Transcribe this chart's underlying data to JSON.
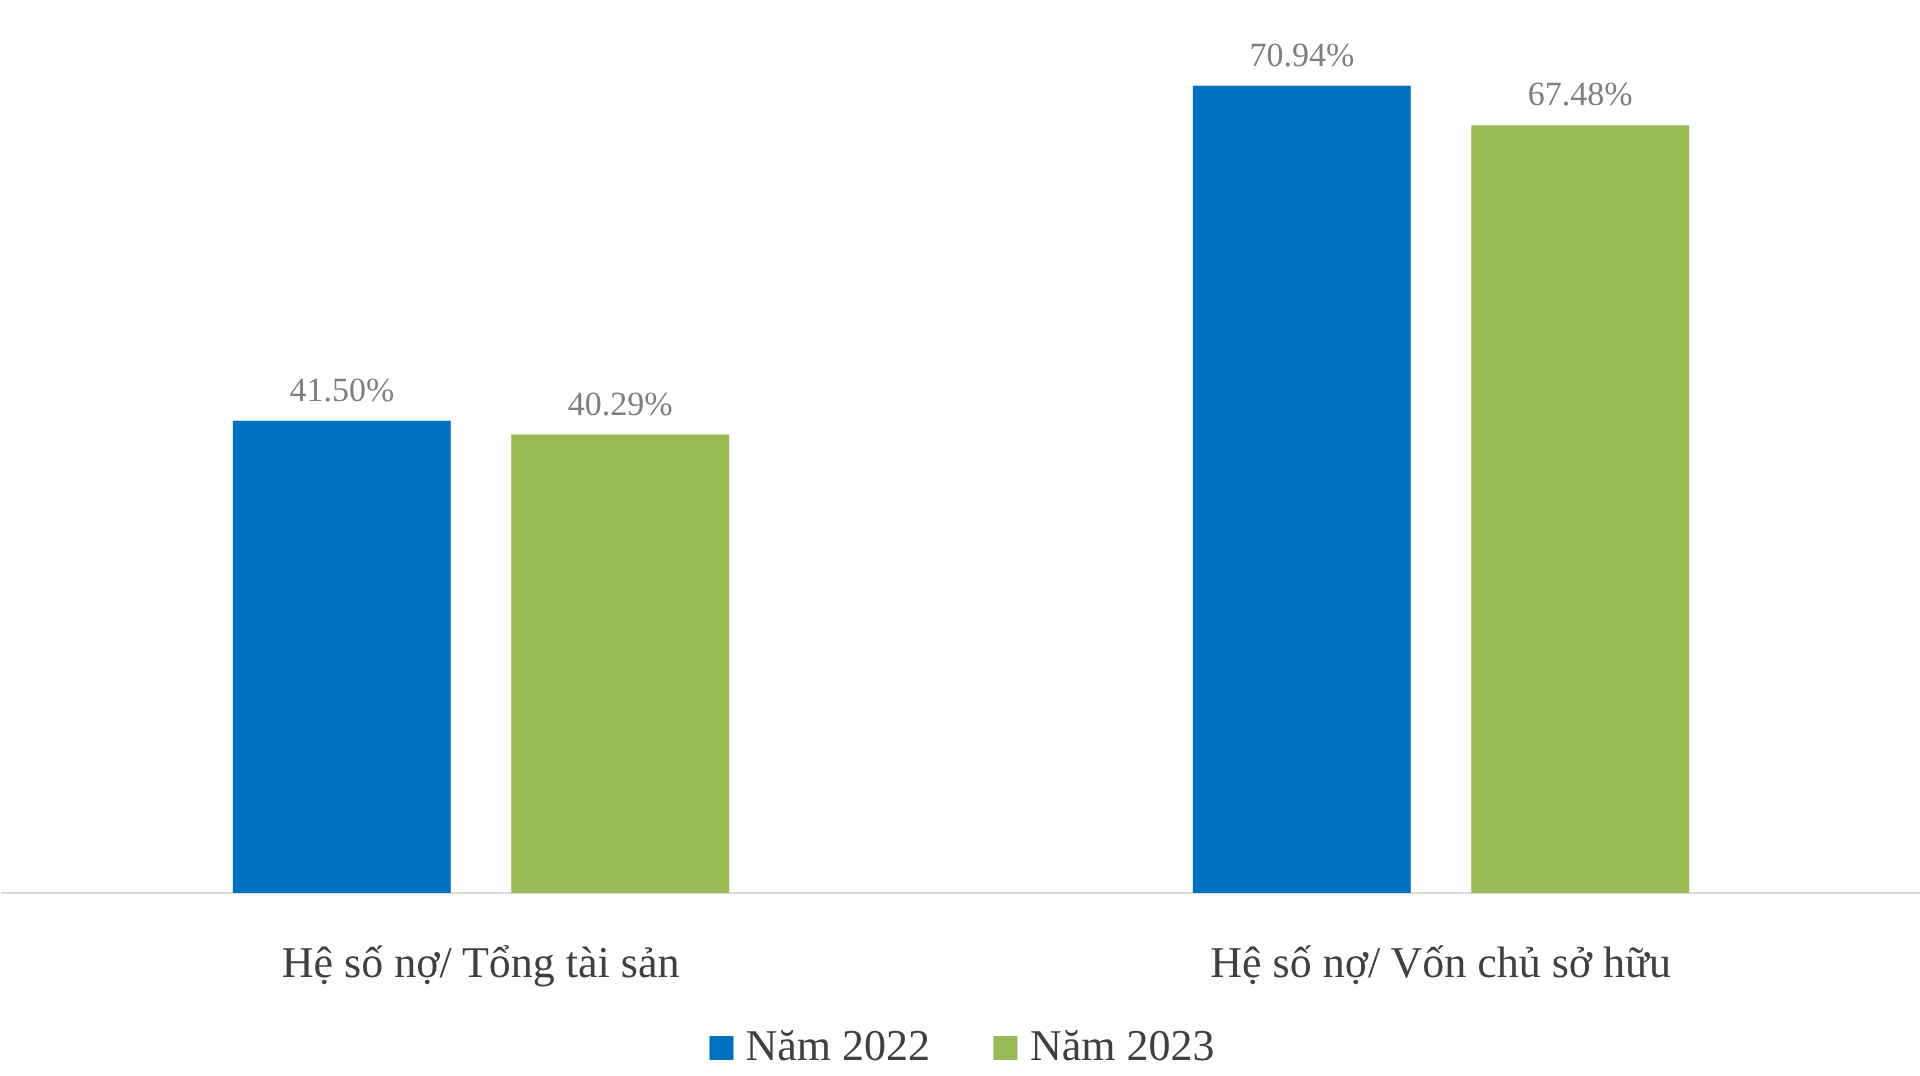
{
  "chart_data": {
    "type": "bar",
    "categories": [
      "Hệ số nợ/ Tổng tài sản",
      "Hệ số nợ/ Vốn chủ sở hữu"
    ],
    "series": [
      {
        "name": "Năm 2022",
        "color": "#0070c0",
        "values": [
          41.5,
          70.94
        ],
        "value_labels": [
          "41.50%",
          "70.94%"
        ]
      },
      {
        "name": "Năm 2023",
        "color": "#9bbb59",
        "values": [
          40.29,
          67.48
        ],
        "value_labels": [
          "40.29%",
          "67.48%"
        ]
      }
    ],
    "legend": "bottom"
  }
}
